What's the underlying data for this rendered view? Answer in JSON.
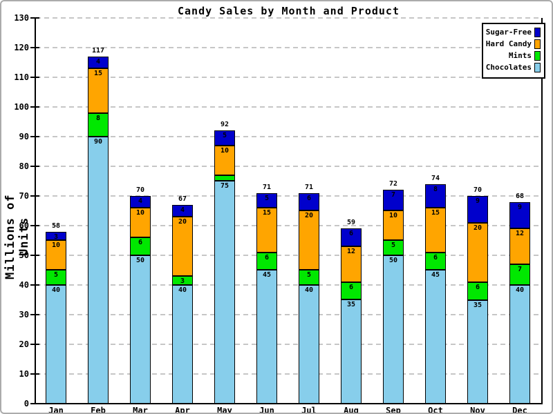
{
  "title": "Candy Sales by Month and Product",
  "ylabel": "Millions of Units",
  "chart_data": {
    "type": "bar",
    "stacked": true,
    "title": "Candy Sales by Month and Product",
    "xlabel": "",
    "ylabel": "Millions of Units",
    "categories": [
      "Jan",
      "Feb",
      "Mar",
      "Apr",
      "May",
      "Jun",
      "Jul",
      "Aug",
      "Sep",
      "Oct",
      "Nov",
      "Dec"
    ],
    "series": [
      {
        "name": "Chocolates",
        "color": "#87ceeb",
        "values": [
          40,
          90,
          50,
          40,
          75,
          45,
          40,
          35,
          50,
          45,
          35,
          40
        ]
      },
      {
        "name": "Mints",
        "color": "#00e800",
        "values": [
          5,
          8,
          6,
          3,
          2,
          6,
          5,
          6,
          5,
          6,
          6,
          7
        ]
      },
      {
        "name": "Hard Candy",
        "color": "#ffa500",
        "values": [
          10,
          15,
          10,
          20,
          10,
          15,
          20,
          12,
          10,
          15,
          20,
          12
        ]
      },
      {
        "name": "Sugar-Free",
        "color": "#0000cc",
        "values": [
          3,
          4,
          4,
          4,
          5,
          5,
          6,
          6,
          7,
          8,
          9,
          9
        ]
      }
    ],
    "totals": [
      58,
      117,
      70,
      67,
      92,
      71,
      71,
      59,
      72,
      74,
      70,
      68
    ],
    "ylim": [
      0,
      130
    ],
    "yticks": [
      0,
      10,
      20,
      30,
      40,
      50,
      60,
      70,
      80,
      90,
      100,
      110,
      120,
      130
    ],
    "grid": "horizontal-dashed",
    "legend_position": "top-right",
    "legend_order": [
      "Sugar-Free",
      "Hard Candy",
      "Mints",
      "Chocolates"
    ],
    "min_value_for_segment_label": 3
  }
}
